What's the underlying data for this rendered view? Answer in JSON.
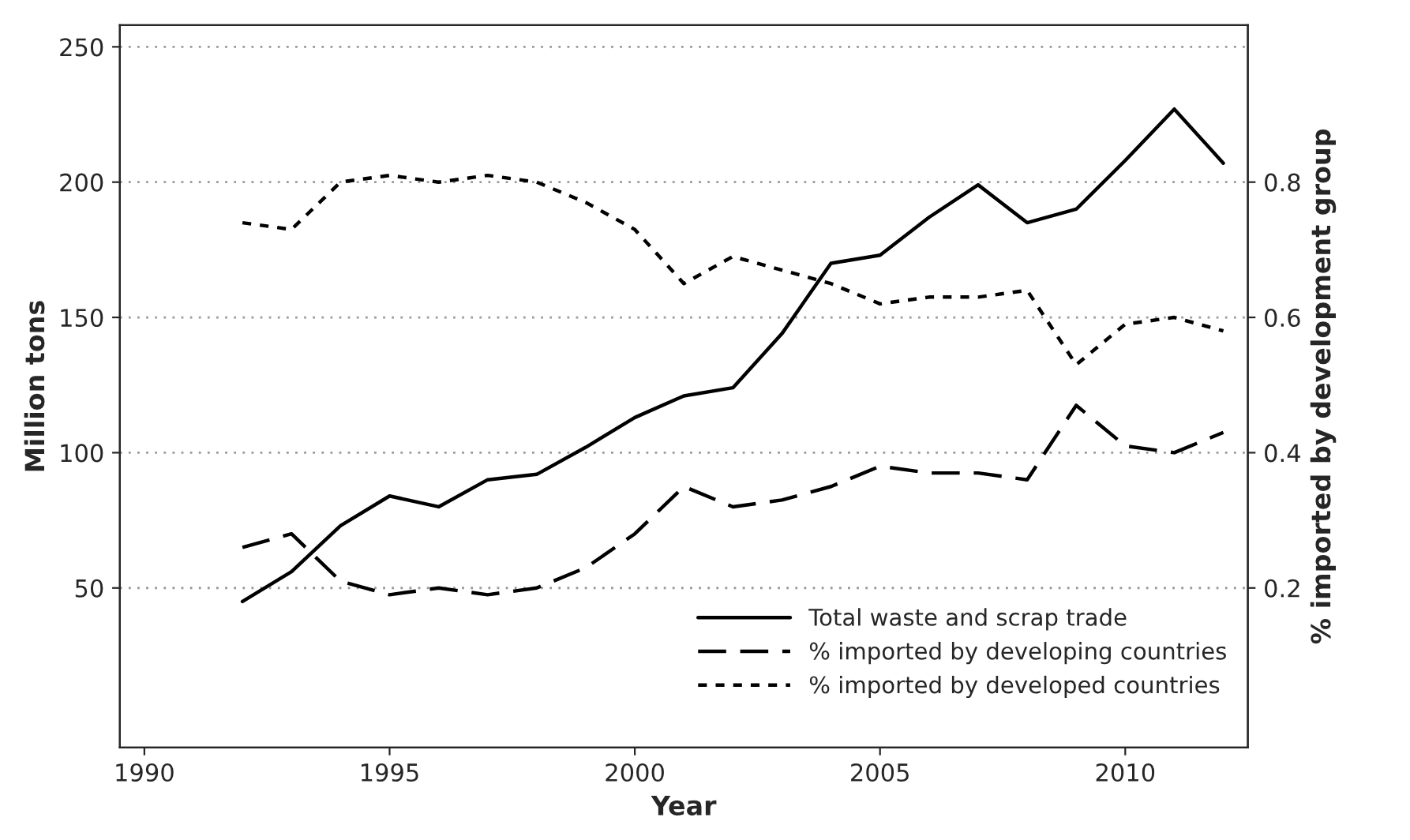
{
  "chart_data": {
    "type": "line",
    "xlabel": "Year",
    "ylabel": "Million tons",
    "y2label": "% imported by development group",
    "x": [
      1992,
      1993,
      1994,
      1995,
      1996,
      1997,
      1998,
      1999,
      2000,
      2001,
      2002,
      2003,
      2004,
      2005,
      2006,
      2007,
      2008,
      2009,
      2010,
      2011,
      2012
    ],
    "series": [
      {
        "name": "Total waste and scrap trade",
        "color": "#000000",
        "line_style": "solid",
        "values": [
          45,
          56,
          73,
          84,
          80,
          90,
          92,
          102,
          113,
          121,
          124,
          144,
          170,
          173,
          187,
          199,
          185,
          190,
          208,
          227,
          207
        ]
      },
      {
        "name": "% imported by developing countries",
        "color": "#000000",
        "line_style": "dashed",
        "axis": "y2",
        "values": [
          0.26,
          0.28,
          0.21,
          0.19,
          0.2,
          0.19,
          0.2,
          0.23,
          0.28,
          0.35,
          0.32,
          0.33,
          0.35,
          0.38,
          0.37,
          0.37,
          0.36,
          0.47,
          0.41,
          0.4,
          0.43
        ]
      },
      {
        "name": "% imported by developed countries",
        "color": "#000000",
        "line_style": "dotted",
        "axis": "y2",
        "values": [
          0.74,
          0.73,
          0.8,
          0.81,
          0.8,
          0.81,
          0.8,
          0.77,
          0.73,
          0.65,
          0.69,
          0.67,
          0.65,
          0.62,
          0.63,
          0.63,
          0.64,
          0.53,
          0.59,
          0.6,
          0.58
        ]
      }
    ],
    "xlim": [
      1989.5,
      2012.5
    ],
    "xticks": [
      1990,
      1995,
      2000,
      2005,
      2010
    ],
    "ylim": [
      -9,
      258
    ],
    "yticks": [
      50,
      100,
      150,
      200,
      250
    ],
    "y2lim": [
      -0.036,
      1.032
    ],
    "y2ticks": [
      0.2,
      0.4,
      0.6,
      0.8
    ],
    "grid": "y",
    "legend": "bottom right"
  }
}
